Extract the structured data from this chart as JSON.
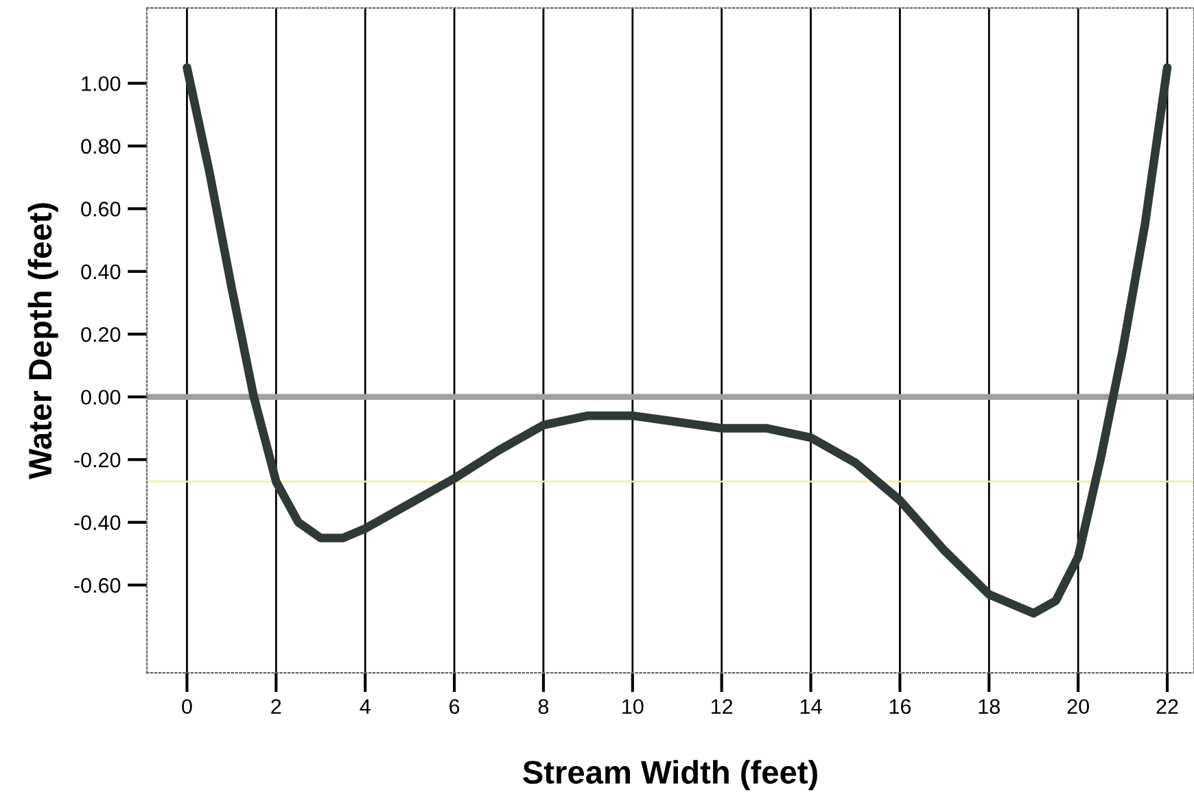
{
  "chart_data": {
    "type": "line",
    "xlabel": "Stream Width (feet)",
    "ylabel": "Water Depth (feet)",
    "series": [
      {
        "color": "#2f3a36",
        "x": [
          0,
          0.5,
          1,
          1.5,
          2,
          2.5,
          3,
          3.5,
          4,
          5,
          6,
          7,
          8,
          9,
          10,
          11,
          12,
          13,
          14,
          15,
          16,
          17,
          18,
          19,
          19.5,
          20,
          20.5,
          21,
          21.5,
          22
        ],
        "values": [
          1.05,
          0.72,
          0.35,
          0.0,
          -0.27,
          -0.4,
          -0.45,
          -0.45,
          -0.42,
          -0.34,
          -0.26,
          -0.17,
          -0.09,
          -0.06,
          -0.06,
          -0.08,
          -0.1,
          -0.1,
          -0.13,
          -0.21,
          -0.33,
          -0.49,
          -0.63,
          -0.69,
          -0.65,
          -0.51,
          -0.2,
          0.15,
          0.55,
          1.05
        ]
      }
    ],
    "xlim": [
      -0.9,
      22.6
    ],
    "ylim": [
      -0.88,
      1.24
    ],
    "xticks": [
      0,
      2,
      4,
      6,
      8,
      10,
      12,
      14,
      16,
      18,
      20,
      22
    ],
    "yticks": [
      {
        "value": -0.6,
        "label": "-0.60"
      },
      {
        "value": -0.4,
        "label": "-0.40"
      },
      {
        "value": -0.2,
        "label": "-0.20"
      },
      {
        "value": 0,
        "label": "0.00"
      },
      {
        "value": 0.2,
        "label": "0.20"
      },
      {
        "value": 0.4,
        "label": "0.40"
      },
      {
        "value": 0.6,
        "label": "0.60"
      },
      {
        "value": 0.8,
        "label": "0.80"
      },
      {
        "value": 1.0,
        "label": "1.00"
      }
    ],
    "ref_lines": [
      {
        "axis": "y",
        "value": 0,
        "color": "#a0a0a0"
      },
      {
        "axis": "y",
        "value": -0.27,
        "color": "#f0f0a0"
      }
    ],
    "grid": "x",
    "line_style": "solid",
    "marker": "none"
  }
}
